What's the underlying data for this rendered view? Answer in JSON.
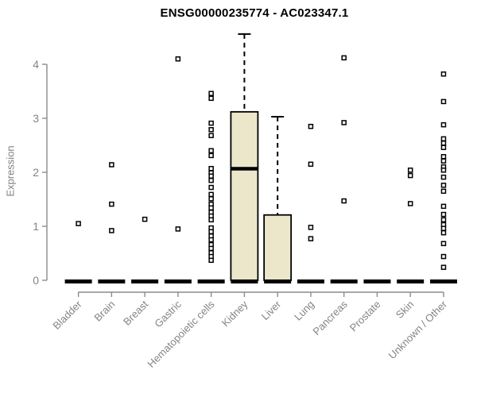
{
  "chart_data": {
    "type": "boxplot",
    "title": "ENSG00000235774 - AC023347.1",
    "ylabel": "Expression",
    "ylim": [
      0,
      4
    ],
    "yticks": [
      0,
      1,
      2,
      3,
      4
    ],
    "grid": false,
    "legend": "none",
    "categories": [
      "Bladder",
      "Brain",
      "Breast",
      "Gastric",
      "Hematopoietic cells",
      "Kidney",
      "Liver",
      "Lung",
      "Pancreas",
      "Prostate",
      "Skin",
      "Unknown / Other"
    ],
    "series": [
      {
        "name": "Bladder",
        "q1": 0,
        "median": 0,
        "q3": 0,
        "whisker_high": 0,
        "outliers": [
          1.05
        ]
      },
      {
        "name": "Brain",
        "q1": 0,
        "median": 0,
        "q3": 0,
        "whisker_high": 0,
        "outliers": [
          2.14,
          1.41,
          0.92
        ]
      },
      {
        "name": "Breast",
        "q1": 0,
        "median": 0,
        "q3": 0,
        "whisker_high": 0,
        "outliers": [
          1.13
        ]
      },
      {
        "name": "Gastric",
        "q1": 0,
        "median": 0,
        "q3": 0,
        "whisker_high": 0,
        "outliers": [
          4.1,
          0.95
        ]
      },
      {
        "name": "Hematopoietic cells",
        "q1": 0,
        "median": 0,
        "q3": 0,
        "whisker_high": 0,
        "outliers": [
          3.46,
          3.37,
          2.91,
          2.79,
          2.68,
          2.4,
          2.31,
          2.07,
          1.99,
          1.93,
          1.85,
          1.72,
          1.59,
          1.51,
          1.41,
          1.34,
          1.26,
          1.19,
          1.12,
          0.97,
          0.9,
          0.82,
          0.75,
          0.66,
          0.59,
          0.51,
          0.44,
          0.37
        ]
      },
      {
        "name": "Kidney",
        "q1": 0,
        "median": 2.07,
        "q3": 3.12,
        "whisker_high": 4.56,
        "outliers": []
      },
      {
        "name": "Liver",
        "q1": 0,
        "median": 0,
        "q3": 1.21,
        "whisker_high": 3.03,
        "outliers": []
      },
      {
        "name": "Lung",
        "q1": 0,
        "median": 0,
        "q3": 0,
        "whisker_high": 0,
        "outliers": [
          2.85,
          2.15,
          0.98,
          0.77
        ]
      },
      {
        "name": "Pancreas",
        "q1": 0,
        "median": 0,
        "q3": 0,
        "whisker_high": 0,
        "outliers": [
          4.12,
          2.92,
          1.47
        ]
      },
      {
        "name": "Prostate",
        "q1": 0,
        "median": 0,
        "q3": 0,
        "whisker_high": 0,
        "outliers": []
      },
      {
        "name": "Skin",
        "q1": 0,
        "median": 0,
        "q3": 0,
        "whisker_high": 0,
        "outliers": [
          2.04,
          1.94,
          1.42
        ]
      },
      {
        "name": "Unknown / Other",
        "q1": 0,
        "median": 0,
        "q3": 0,
        "whisker_high": 0,
        "outliers": [
          3.82,
          3.31,
          2.88,
          2.62,
          2.54,
          2.46,
          2.29,
          2.21,
          2.1,
          2.04,
          1.91,
          1.76,
          1.65,
          1.37,
          1.22,
          1.12,
          1.03,
          0.96,
          0.88,
          0.68,
          0.44,
          0.24
        ]
      }
    ],
    "colors": {
      "box_fill": "#ECE7CB",
      "box_stroke": "#000000",
      "whisker": "#000000",
      "zero_bar": "#000000",
      "outlier_stroke": "#000000",
      "outlier_fill": "#FFFFFF",
      "axis": "#8C8C8C",
      "tick_label": "#848484",
      "title": "#000000",
      "background": "#FFFFFF"
    }
  }
}
